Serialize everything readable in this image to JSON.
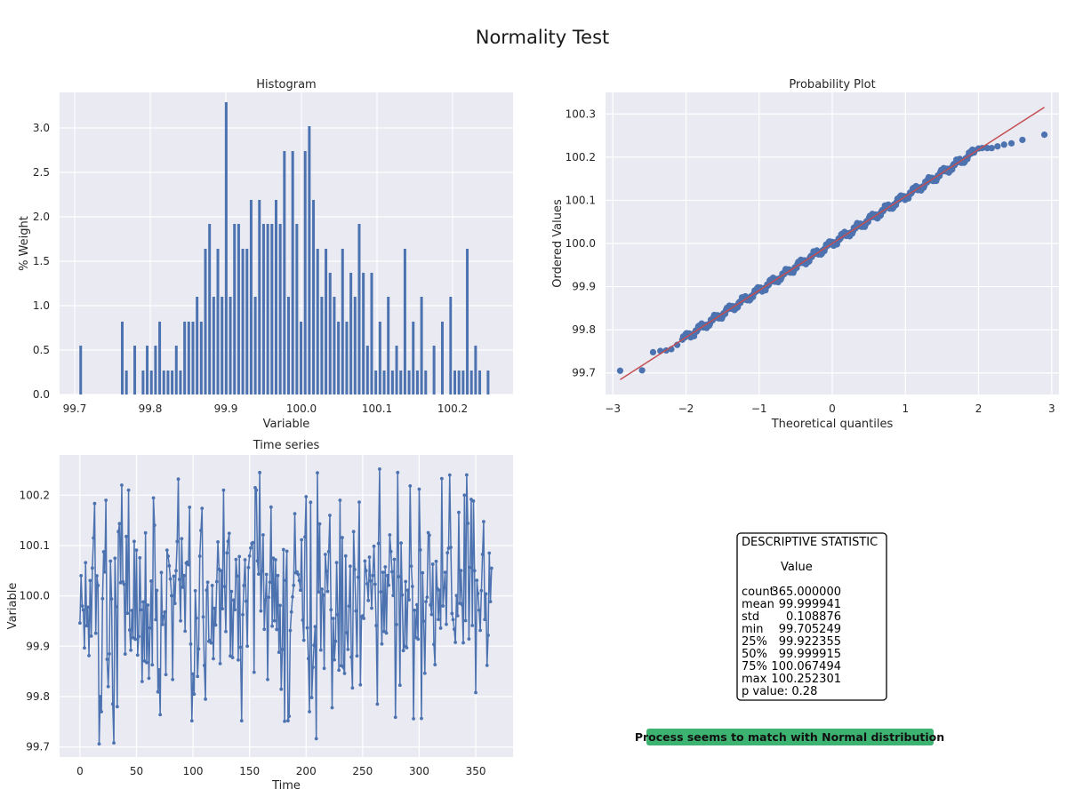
{
  "page": {
    "title": "Normality Test"
  },
  "colors": {
    "bar": "#4c72b0",
    "line": "#4c72b0",
    "fit_line": "#c44e52",
    "background": "#eaeaf2",
    "grid": "#ffffff",
    "conclusion_bg": "#3cb371"
  },
  "chart_data": [
    {
      "type": "bar",
      "title": "Histogram",
      "xlabel": "Variable",
      "ylabel": "% Weight",
      "xlim": [
        99.68,
        100.28
      ],
      "ylim": [
        0,
        3.4
      ],
      "xticks": [
        99.7,
        99.8,
        99.9,
        100.0,
        100.1,
        100.2
      ],
      "xtick_labels": [
        "99.7",
        "99.8",
        "99.9",
        "100.0",
        "100.1",
        "100.2"
      ],
      "yticks": [
        0.0,
        0.5,
        1.0,
        1.5,
        2.0,
        2.5,
        3.0
      ],
      "ytick_labels": [
        "0.0",
        "0.5",
        "1.0",
        "1.5",
        "2.0",
        "2.5",
        "3.0"
      ],
      "bin_start": 99.7052,
      "bin_width": 0.0055,
      "values": [
        0.55,
        0,
        0,
        0,
        0,
        0,
        0,
        0,
        0,
        0,
        0.82,
        0.27,
        0,
        0.55,
        0,
        0.27,
        0.55,
        0.27,
        0.55,
        0.82,
        0.27,
        0.27,
        0.27,
        0.55,
        0.27,
        0.82,
        0.82,
        0.82,
        1.1,
        0.82,
        1.64,
        1.92,
        1.1,
        1.64,
        1.1,
        3.29,
        1.1,
        1.92,
        1.92,
        1.64,
        1.64,
        2.19,
        1.1,
        2.19,
        1.92,
        1.92,
        1.92,
        2.19,
        1.92,
        2.74,
        1.1,
        2.74,
        1.92,
        0.82,
        2.74,
        3.02,
        2.19,
        1.64,
        1.1,
        1.64,
        1.37,
        1.1,
        0.82,
        1.64,
        0.82,
        1.37,
        1.1,
        1.92,
        1.37,
        0.55,
        1.37,
        0.27,
        0.82,
        0.27,
        1.1,
        0.27,
        0.55,
        0.27,
        1.64,
        0.27,
        0.82,
        0.27,
        1.1,
        0.27,
        0,
        0.55,
        0,
        0.82,
        0,
        1.1,
        0.27,
        0.27,
        0.27,
        1.64,
        0.27,
        0.55,
        0.27,
        0,
        0.27
      ]
    },
    {
      "type": "scatter",
      "title": "Probability Plot",
      "xlabel": "Theoretical quantiles",
      "ylabel": "Ordered Values",
      "xlim": [
        -3.1,
        3.1
      ],
      "ylim": [
        99.65,
        100.35
      ],
      "xticks": [
        -3,
        -2,
        -1,
        0,
        1,
        2,
        3
      ],
      "xtick_labels": [
        "−3",
        "−2",
        "−1",
        "0",
        "1",
        "2",
        "3"
      ],
      "yticks": [
        99.7,
        99.8,
        99.9,
        100.0,
        100.1,
        100.2,
        100.3
      ],
      "ytick_labels": [
        "99.7",
        "99.8",
        "99.9",
        "100.0",
        "100.1",
        "100.2",
        "100.3"
      ],
      "fit_line": {
        "slope": 0.1088,
        "intercept": 100.0
      },
      "tail_points": [
        [
          -2.9,
          99.705
        ],
        [
          -2.6,
          99.706
        ],
        [
          -2.45,
          99.748
        ],
        [
          -2.35,
          99.751
        ],
        [
          -2.27,
          99.752
        ],
        [
          -2.2,
          99.755
        ],
        [
          -2.12,
          99.765
        ],
        [
          2.0,
          100.22
        ],
        [
          2.05,
          100.221
        ],
        [
          2.12,
          100.221
        ],
        [
          2.18,
          100.221
        ],
        [
          2.26,
          100.225
        ],
        [
          2.35,
          100.229
        ],
        [
          2.45,
          100.232
        ],
        [
          2.6,
          100.24
        ],
        [
          2.9,
          100.252
        ]
      ],
      "body_range": [
        -2.05,
        1.95
      ],
      "body_count": 349
    },
    {
      "type": "line",
      "title": "Time series",
      "xlabel": "Time",
      "ylabel": "Variable",
      "xlim": [
        -18,
        383
      ],
      "ylim": [
        99.68,
        100.28
      ],
      "xticks": [
        0,
        50,
        100,
        150,
        200,
        250,
        300,
        350
      ],
      "xtick_labels": [
        "0",
        "50",
        "100",
        "150",
        "200",
        "250",
        "300",
        "350"
      ],
      "yticks": [
        99.7,
        99.8,
        99.9,
        100.0,
        100.1,
        100.2
      ],
      "ytick_labels": [
        "99.7",
        "99.8",
        "99.9",
        "100.0",
        "100.1",
        "100.2"
      ],
      "count": 365,
      "known_points": [
        [
          0,
          99.946
        ],
        [
          2,
          99.98
        ],
        [
          5,
          100.066
        ],
        [
          12,
          100.115
        ],
        [
          17,
          99.706
        ],
        [
          18,
          99.8
        ],
        [
          19,
          99.77
        ],
        [
          23,
          100.19
        ],
        [
          30,
          99.708
        ],
        [
          33,
          99.78
        ],
        [
          37,
          100.22
        ],
        [
          43,
          100.21
        ],
        [
          55,
          99.83
        ],
        [
          87,
          100.232
        ],
        [
          104,
          99.84
        ],
        [
          111,
          99.795
        ],
        [
          127,
          100.21
        ],
        [
          143,
          99.752
        ],
        [
          156,
          100.21
        ],
        [
          181,
          99.751
        ],
        [
          184,
          99.752
        ],
        [
          200,
          100.197
        ],
        [
          203,
          99.77
        ],
        [
          205,
          99.798
        ],
        [
          230,
          100.19
        ],
        [
          263,
          99.785
        ],
        [
          265,
          100.252
        ],
        [
          295,
          99.756
        ],
        [
          300,
          100.212
        ],
        [
          320,
          100.233
        ],
        [
          327,
          100.24
        ],
        [
          340,
          100.2
        ],
        [
          350,
          99.808
        ],
        [
          360,
          99.862
        ],
        [
          364,
          100.055
        ]
      ],
      "mean": 99.999941,
      "std": 0.108876
    }
  ],
  "stats_box": {
    "title": "DESCRIPTIVE STATISTIC",
    "column_header": "Value",
    "rows": [
      {
        "label": "count",
        "value": "365.000000"
      },
      {
        "label": "mean",
        "value": "99.999941"
      },
      {
        "label": "std",
        "value": "0.108876"
      },
      {
        "label": "min",
        "value": "99.705249"
      },
      {
        "label": "25%",
        "value": "99.922355"
      },
      {
        "label": "50%",
        "value": "99.999915"
      },
      {
        "label": "75%",
        "value": "100.067494"
      },
      {
        "label": "max",
        "value": "100.252301"
      }
    ],
    "p_value": "p value: 0.28"
  },
  "conclusion": "Process seems to match with Normal distribution"
}
